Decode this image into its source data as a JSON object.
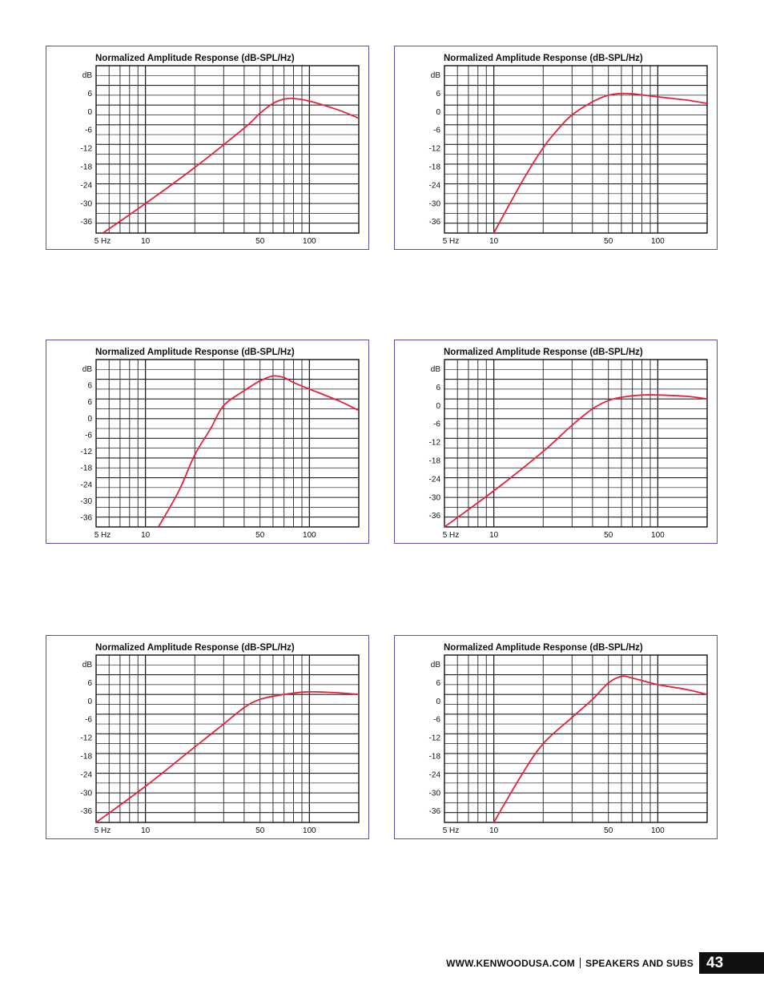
{
  "chart_data": [
    {
      "type": "line",
      "title": "Normalized Amplitude Response (dB-SPL/Hz)",
      "ylabel": "dB",
      "x_scale": "log",
      "xlim": [
        5,
        200
      ],
      "ylim": [
        -39,
        12
      ],
      "x_tick_labels": [
        "5 Hz",
        "10",
        "50",
        "100"
      ],
      "y_tick_labels": [
        "dB",
        "6",
        "0",
        "-6",
        "-12",
        "-18",
        "-24",
        "-30",
        "-36"
      ],
      "grid": true,
      "series": [
        {
          "color": "#e8213a",
          "x": [
            5.5,
            10,
            20,
            40,
            50,
            60,
            70,
            80,
            100,
            150,
            200
          ],
          "y": [
            -39,
            -30,
            -19,
            -7,
            -2.5,
            0.5,
            1.8,
            2.0,
            1.2,
            -1.5,
            -4.0
          ]
        }
      ]
    },
    {
      "type": "line",
      "title": "Normalized Amplitude Response (dB-SPL/Hz)",
      "ylabel": "dB",
      "x_scale": "log",
      "xlim": [
        5,
        200
      ],
      "ylim": [
        -39,
        12
      ],
      "x_tick_labels": [
        "5 Hz",
        "10",
        "50",
        "100"
      ],
      "y_tick_labels": [
        "dB",
        "6",
        "0",
        "-6",
        "-12",
        "-18",
        "-24",
        "-30",
        "-36"
      ],
      "grid": true,
      "series": [
        {
          "color": "#e8213a",
          "x": [
            10,
            15,
            20,
            25,
            30,
            40,
            50,
            60,
            70,
            100,
            150,
            200
          ],
          "y": [
            -39,
            -23,
            -13,
            -7,
            -3,
            1.0,
            3.0,
            3.5,
            3.4,
            2.5,
            1.5,
            0.5
          ]
        }
      ]
    },
    {
      "type": "line",
      "title": "Normalized Amplitude Response (dB-SPL/Hz)",
      "ylabel": "dB",
      "x_scale": "log",
      "xlim": [
        5,
        200
      ],
      "ylim": [
        -39,
        12
      ],
      "x_tick_labels": [
        "5 Hz",
        "10",
        "50",
        "100"
      ],
      "y_tick_labels": [
        "dB",
        "6",
        "6",
        "0",
        "-6",
        "-12",
        "-18",
        "-24",
        "-30",
        "-36"
      ],
      "grid": true,
      "series": [
        {
          "color": "#e8213a",
          "x": [
            12,
            16,
            20,
            25,
            30,
            40,
            50,
            60,
            70,
            80,
            100,
            150,
            200
          ],
          "y": [
            -39,
            -28,
            -17,
            -9,
            -2,
            2.5,
            5.5,
            7.0,
            6.5,
            5.0,
            3.0,
            -0.5,
            -3.5
          ]
        }
      ]
    },
    {
      "type": "line",
      "title": "Normalized Amplitude Response (dB-SPL/Hz)",
      "ylabel": "dB",
      "x_scale": "log",
      "xlim": [
        5,
        200
      ],
      "ylim": [
        -39,
        12
      ],
      "x_tick_labels": [
        "5 Hz",
        "10",
        "50",
        "100"
      ],
      "y_tick_labels": [
        "dB",
        "6",
        "0",
        "-6",
        "-12",
        "-18",
        "-24",
        "-30",
        "-36"
      ],
      "grid": true,
      "series": [
        {
          "color": "#e8213a",
          "x": [
            5,
            10,
            20,
            30,
            40,
            50,
            60,
            80,
            100,
            150,
            200
          ],
          "y": [
            -39,
            -28,
            -16,
            -8,
            -3,
            -0.5,
            0.5,
            1.2,
            1.2,
            0.8,
            0
          ]
        }
      ]
    },
    {
      "type": "line",
      "title": "Normalized Amplitude Response (dB-SPL/Hz)",
      "ylabel": "dB",
      "x_scale": "log",
      "xlim": [
        5,
        200
      ],
      "ylim": [
        -39,
        12
      ],
      "x_tick_labels": [
        "5 Hz",
        "10",
        "50",
        "100"
      ],
      "y_tick_labels": [
        "dB",
        "6",
        "0",
        "-6",
        "-12",
        "-18",
        "-24",
        "-30",
        "-36"
      ],
      "grid": true,
      "series": [
        {
          "color": "#e8213a",
          "x": [
            5,
            10,
            20,
            30,
            40,
            50,
            70,
            100,
            150,
            200
          ],
          "y": [
            -39,
            -28,
            -16,
            -9,
            -4,
            -1.5,
            0,
            0.8,
            0.5,
            0
          ]
        }
      ]
    },
    {
      "type": "line",
      "title": "Normalized Amplitude Response (dB-SPL/Hz)",
      "ylabel": "dB",
      "x_scale": "log",
      "xlim": [
        5,
        200
      ],
      "ylim": [
        -39,
        12
      ],
      "x_tick_labels": [
        "5 Hz",
        "10",
        "50",
        "100"
      ],
      "y_tick_labels": [
        "dB",
        "6",
        "0",
        "-6",
        "-12",
        "-18",
        "-24",
        "-30",
        "-36"
      ],
      "grid": true,
      "series": [
        {
          "color": "#e8213a",
          "x": [
            10,
            15,
            20,
            30,
            40,
            50,
            60,
            70,
            100,
            150,
            200
          ],
          "y": [
            -39,
            -24,
            -15,
            -7,
            -1.5,
            3.5,
            5.5,
            5.0,
            3.0,
            1.5,
            0
          ]
        }
      ]
    }
  ],
  "footer": {
    "site": "WWW.KENWOODUSA.COM",
    "section": "SPEAKERS AND SUBS",
    "page_number": "43"
  }
}
